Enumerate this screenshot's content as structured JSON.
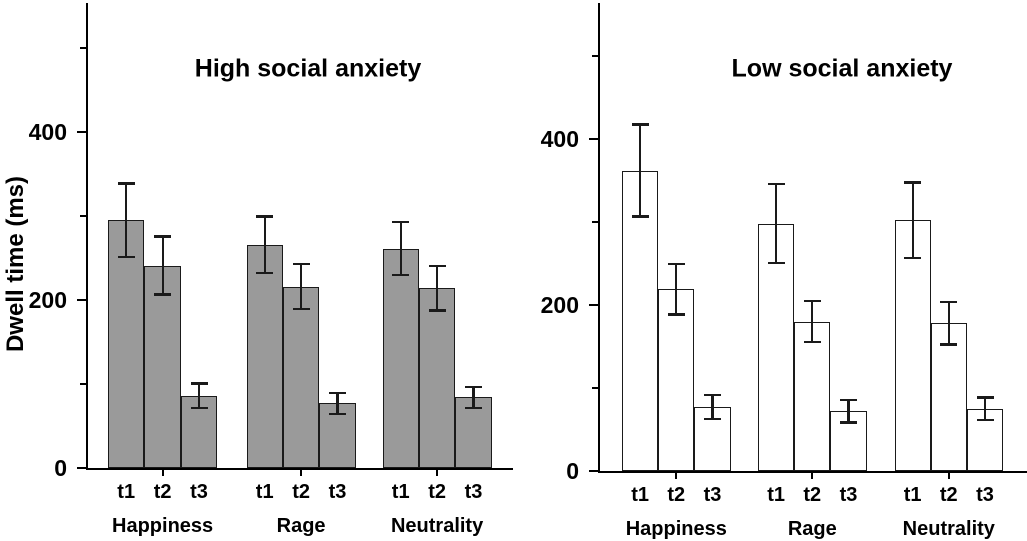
{
  "figure": {
    "ylabel": "Dwell time (ms)",
    "background_color": "#ffffff",
    "axis_color": "#000000",
    "text_color": "#000000"
  },
  "chart_data": [
    {
      "type": "bar",
      "panel": "left",
      "title": "High social anxiety",
      "ylabel": "Dwell time (ms)",
      "xlabel": "",
      "ylim": [
        0,
        550
      ],
      "yticks_labeled": [
        0,
        200,
        400
      ],
      "yticks_minor": [
        100,
        300,
        500
      ],
      "grid": false,
      "legend": false,
      "bar_fill": "#9a9a9a",
      "bar_border": "#1a1a1a",
      "categories": [
        "Happiness",
        "Rage",
        "Neutrality"
      ],
      "bar_labels": [
        "t1",
        "t2",
        "t3"
      ],
      "series": [
        {
          "category": "Happiness",
          "values": [
            295,
            241,
            86
          ],
          "errors": [
            45,
            36,
            16
          ]
        },
        {
          "category": "Rage",
          "values": [
            266,
            216,
            77
          ],
          "errors": [
            35,
            28,
            14
          ]
        },
        {
          "category": "Neutrality",
          "values": [
            261,
            214,
            84
          ],
          "errors": [
            33,
            28,
            14
          ]
        }
      ]
    },
    {
      "type": "bar",
      "panel": "right",
      "title": "Low social anxiety",
      "ylabel": "Dwell time (ms)",
      "xlabel": "",
      "ylim": [
        0,
        550
      ],
      "yticks_labeled": [
        0,
        200,
        400
      ],
      "yticks_minor": [
        100,
        300,
        500
      ],
      "grid": false,
      "legend": false,
      "bar_fill": "#ffffff",
      "bar_border": "#1a1a1a",
      "categories": [
        "Happiness",
        "Rage",
        "Neutrality"
      ],
      "bar_labels": [
        "t1",
        "t2",
        "t3"
      ],
      "series": [
        {
          "category": "Happiness",
          "values": [
            362,
            219,
            77
          ],
          "errors": [
            57,
            32,
            16
          ]
        },
        {
          "category": "Rage",
          "values": [
            298,
            180,
            72
          ],
          "errors": [
            49,
            26,
            15
          ]
        },
        {
          "category": "Neutrality",
          "values": [
            302,
            178,
            75
          ],
          "errors": [
            47,
            27,
            15
          ]
        }
      ]
    }
  ]
}
